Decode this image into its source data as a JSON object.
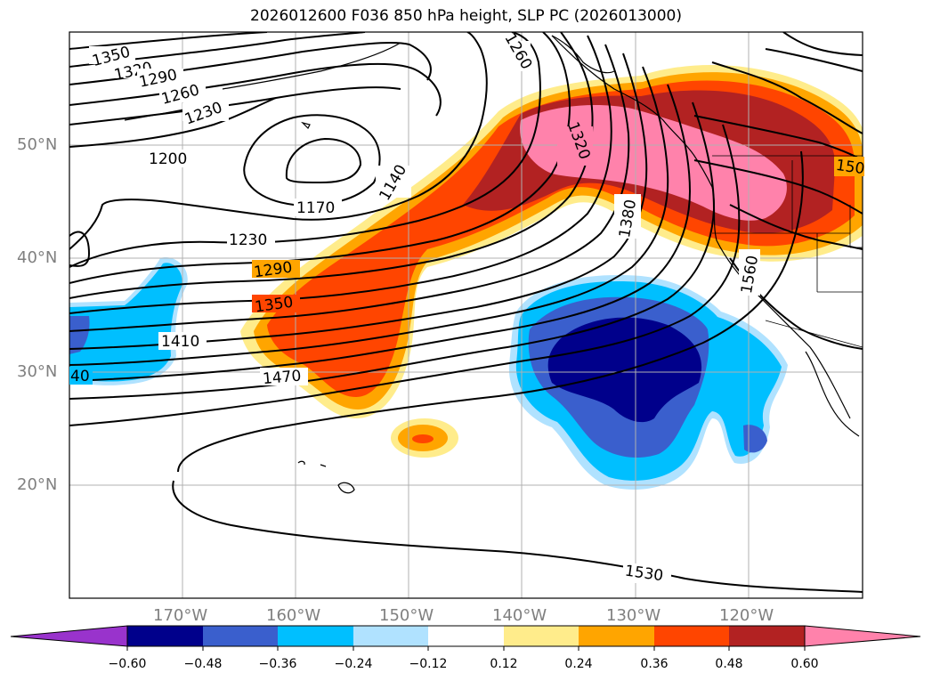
{
  "title": "2026012600 F036 850 hPa height, SLP PC (2026013000)",
  "map": {
    "latitude_labels": [
      "50°N",
      "40°N",
      "30°N",
      "20°N"
    ],
    "longitude_labels": [
      "170°W",
      "160°W",
      "150°W",
      "140°W",
      "130°W",
      "120°W"
    ],
    "contour_labels": [
      "1350",
      "1320",
      "1290",
      "1260",
      "1230",
      "1200",
      "1260",
      "1140",
      "1170",
      "1230",
      "1290",
      "1350",
      "1410",
      "1470",
      "1320",
      "1380",
      "1560",
      "150",
      "40",
      "1530"
    ],
    "filled_field": "SLP PC",
    "contour_field": "850 hPa height"
  },
  "colorbar": {
    "ticks": [
      "−0.60",
      "−0.48",
      "−0.36",
      "−0.24",
      "−0.12",
      "0.12",
      "0.24",
      "0.36",
      "0.48",
      "0.60"
    ],
    "colors": [
      "#9933cc",
      "#00008b",
      "#3a5fcd",
      "#00bfff",
      "#b0e2ff",
      "#ffffff",
      "#ffec8b",
      "#ffa500",
      "#ff4500",
      "#b22222",
      "#ff82ab"
    ]
  }
}
